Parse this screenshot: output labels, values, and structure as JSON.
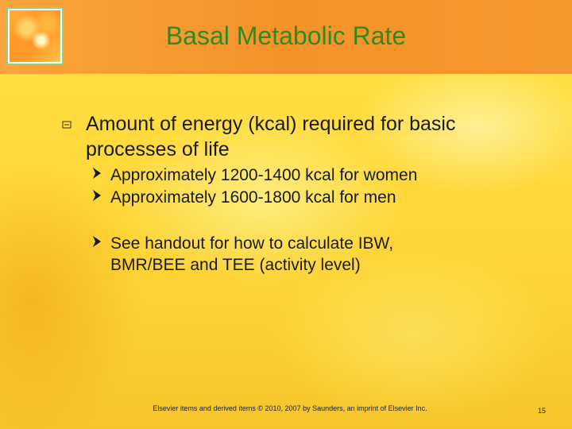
{
  "slide": {
    "title": "Basal Metabolic Rate",
    "bullet": {
      "icon": "square-bullet-icon",
      "text": "Amount of energy (kcal) required for basic processes of life"
    },
    "sub_bullets": [
      {
        "icon": "arrowhead-bullet-icon",
        "text": "Approximately 1200-1400 kcal for women"
      },
      {
        "icon": "arrowhead-bullet-icon",
        "text": "Approximately 1600-1800 kcal for men"
      },
      {
        "icon": "arrowhead-bullet-icon",
        "text": "See handout for how to calculate IBW, BMR/BEE and TEE (activity level)"
      }
    ],
    "footer": "Elsevier items and derived items © 2010, 2007 by Saunders, an imprint of Elsevier Inc.",
    "page_number": "15",
    "colors": {
      "title": "#2e8b22",
      "header": "#f6922a",
      "background": "#ffd93a",
      "logo_border": "#8ed08a"
    }
  }
}
